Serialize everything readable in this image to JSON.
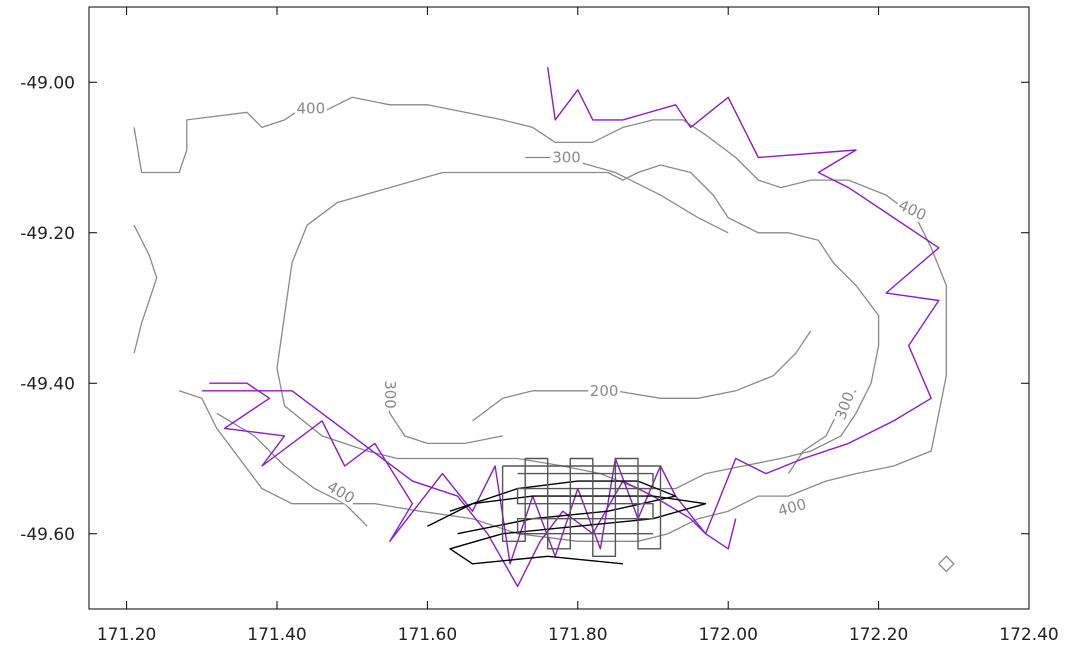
{
  "chart_data": {
    "type": "line",
    "title": "",
    "xlabel": "",
    "ylabel": "",
    "xlim": [
      171.15,
      172.4
    ],
    "ylim": [
      -49.7,
      -48.9
    ],
    "xticks": [
      {
        "value": 171.2,
        "label": "171.20"
      },
      {
        "value": 171.4,
        "label": "171.40"
      },
      {
        "value": 171.6,
        "label": "171.60"
      },
      {
        "value": 171.8,
        "label": "171.80"
      },
      {
        "value": 172.0,
        "label": "172.00"
      },
      {
        "value": 172.2,
        "label": "172.20"
      },
      {
        "value": 172.4,
        "label": "172.40"
      }
    ],
    "yticks": [
      {
        "value": -49.0,
        "label": "-49.00"
      },
      {
        "value": -49.2,
        "label": "-49.20"
      },
      {
        "value": -49.4,
        "label": "-49.40"
      },
      {
        "value": -49.6,
        "label": "-49.60"
      }
    ],
    "grid": false,
    "colors": {
      "contour": "#8a8a8a",
      "track_purple": "#8a1ccf",
      "track_black": "#000000",
      "track_gray": "#555555",
      "axis": "#000000"
    },
    "contours": [
      {
        "id": "contour-400-outer",
        "level": 400,
        "points": [
          [
            171.21,
            -49.06
          ],
          [
            171.22,
            -49.12
          ],
          [
            171.27,
            -49.12
          ],
          [
            171.28,
            -49.09
          ],
          [
            171.28,
            -49.05
          ],
          [
            171.36,
            -49.04
          ],
          [
            171.38,
            -49.06
          ],
          [
            171.41,
            -49.05
          ],
          [
            171.44,
            -49.03
          ],
          [
            171.46,
            -49.04
          ],
          [
            171.5,
            -49.02
          ],
          [
            171.55,
            -49.03
          ],
          [
            171.6,
            -49.03
          ],
          [
            171.65,
            -49.04
          ],
          [
            171.7,
            -49.05
          ],
          [
            171.74,
            -49.06
          ],
          [
            171.77,
            -49.08
          ],
          [
            171.82,
            -49.08
          ],
          [
            171.86,
            -49.06
          ],
          [
            171.9,
            -49.05
          ],
          [
            171.94,
            -49.05
          ],
          [
            171.97,
            -49.07
          ],
          [
            172.01,
            -49.1
          ],
          [
            172.04,
            -49.13
          ],
          [
            172.07,
            -49.14
          ],
          [
            172.11,
            -49.13
          ],
          [
            172.16,
            -49.13
          ],
          [
            172.21,
            -49.15
          ],
          [
            172.25,
            -49.18
          ],
          [
            172.27,
            -49.22
          ],
          [
            172.29,
            -49.27
          ],
          [
            172.29,
            -49.33
          ],
          [
            172.29,
            -49.39
          ],
          [
            172.28,
            -49.44
          ],
          [
            172.27,
            -49.49
          ],
          [
            172.22,
            -49.51
          ],
          [
            172.17,
            -49.52
          ],
          [
            172.13,
            -49.53
          ],
          [
            172.08,
            -49.55
          ],
          [
            172.04,
            -49.55
          ],
          [
            172.0,
            -49.57
          ],
          [
            171.96,
            -49.58
          ],
          [
            171.92,
            -49.6
          ],
          [
            171.88,
            -49.61
          ],
          [
            171.8,
            -49.61
          ],
          [
            171.72,
            -49.6
          ],
          [
            171.66,
            -49.58
          ],
          [
            171.59,
            -49.57
          ],
          [
            171.53,
            -49.56
          ],
          [
            171.47,
            -49.56
          ],
          [
            171.42,
            -49.56
          ],
          [
            171.38,
            -49.54
          ],
          [
            171.35,
            -49.5
          ],
          [
            171.32,
            -49.46
          ],
          [
            171.3,
            -49.42
          ],
          [
            171.27,
            -49.41
          ]
        ]
      },
      {
        "id": "contour-300-main",
        "level": 300,
        "points": [
          [
            171.55,
            -49.14
          ],
          [
            171.62,
            -49.12
          ],
          [
            171.7,
            -49.12
          ],
          [
            171.76,
            -49.12
          ],
          [
            171.8,
            -49.12
          ],
          [
            171.84,
            -49.12
          ],
          [
            171.86,
            -49.13
          ],
          [
            171.88,
            -49.12
          ],
          [
            171.91,
            -49.11
          ],
          [
            171.95,
            -49.12
          ],
          [
            171.98,
            -49.15
          ],
          [
            172.0,
            -49.18
          ],
          [
            172.04,
            -49.2
          ],
          [
            172.08,
            -49.2
          ],
          [
            172.12,
            -49.21
          ],
          [
            172.14,
            -49.24
          ],
          [
            172.17,
            -49.27
          ],
          [
            172.2,
            -49.31
          ],
          [
            172.2,
            -49.35
          ],
          [
            172.19,
            -49.4
          ],
          [
            172.17,
            -49.44
          ],
          [
            172.15,
            -49.47
          ],
          [
            172.11,
            -49.49
          ],
          [
            172.07,
            -49.5
          ],
          [
            172.02,
            -49.51
          ],
          [
            171.97,
            -49.52
          ],
          [
            171.93,
            -49.54
          ],
          [
            171.88,
            -49.54
          ],
          [
            171.83,
            -49.52
          ],
          [
            171.78,
            -49.51
          ],
          [
            171.72,
            -49.5
          ],
          [
            171.66,
            -49.5
          ],
          [
            171.61,
            -49.5
          ],
          [
            171.56,
            -49.5
          ],
          [
            171.52,
            -49.49
          ],
          [
            171.46,
            -49.47
          ],
          [
            171.41,
            -49.43
          ],
          [
            171.4,
            -49.38
          ],
          [
            171.41,
            -49.31
          ],
          [
            171.42,
            -49.24
          ],
          [
            171.44,
            -49.19
          ],
          [
            171.48,
            -49.16
          ],
          [
            171.55,
            -49.14
          ]
        ]
      },
      {
        "id": "contour-300-inner-west",
        "level": 300,
        "points": [
          [
            171.54,
            -49.4
          ],
          [
            171.55,
            -49.44
          ],
          [
            171.57,
            -49.47
          ],
          [
            171.6,
            -49.48
          ],
          [
            171.65,
            -49.48
          ],
          [
            171.7,
            -49.47
          ]
        ]
      },
      {
        "id": "contour-300-east-shelf",
        "level": 300,
        "points": [
          [
            172.08,
            -49.52
          ],
          [
            172.1,
            -49.49
          ],
          [
            172.13,
            -49.47
          ],
          [
            172.15,
            -49.43
          ],
          [
            172.17,
            -49.41
          ]
        ]
      },
      {
        "id": "contour-300-north-arm",
        "level": 300,
        "points": [
          [
            171.73,
            -49.1
          ],
          [
            171.78,
            -49.1
          ],
          [
            171.85,
            -49.12
          ],
          [
            171.91,
            -49.15
          ],
          [
            171.96,
            -49.18
          ],
          [
            172.0,
            -49.2
          ]
        ]
      },
      {
        "id": "contour-200-inner",
        "level": 200,
        "points": [
          [
            171.66,
            -49.45
          ],
          [
            171.7,
            -49.42
          ],
          [
            171.74,
            -49.41
          ],
          [
            171.8,
            -49.41
          ],
          [
            171.85,
            -49.41
          ],
          [
            171.91,
            -49.42
          ],
          [
            171.96,
            -49.42
          ],
          [
            172.01,
            -49.41
          ],
          [
            172.06,
            -49.39
          ],
          [
            172.09,
            -49.36
          ],
          [
            172.11,
            -49.33
          ]
        ]
      },
      {
        "id": "contour-shallow-west",
        "level": 400,
        "points": [
          [
            171.21,
            -49.19
          ],
          [
            171.23,
            -49.23
          ],
          [
            171.24,
            -49.26
          ],
          [
            171.23,
            -49.29
          ],
          [
            171.22,
            -49.32
          ],
          [
            171.21,
            -49.36
          ]
        ]
      },
      {
        "id": "contour-400-southwest",
        "level": 400,
        "points": [
          [
            171.32,
            -49.44
          ],
          [
            171.37,
            -49.47
          ],
          [
            171.41,
            -49.51
          ],
          [
            171.45,
            -49.54
          ],
          [
            171.49,
            -49.56
          ],
          [
            171.52,
            -49.59
          ]
        ]
      },
      {
        "id": "contour-patch-east",
        "level": 400,
        "points": [
          [
            172.28,
            -49.64
          ],
          [
            172.29,
            -49.65
          ],
          [
            172.3,
            -49.64
          ],
          [
            172.29,
            -49.63
          ],
          [
            172.28,
            -49.64
          ]
        ]
      }
    ],
    "contour_labels": [
      {
        "text": "400",
        "x": 171.445,
        "y": -49.035,
        "angle": 0
      },
      {
        "text": "300",
        "x": 171.785,
        "y": -49.1,
        "angle": 0
      },
      {
        "text": "400",
        "x": 172.245,
        "y": -49.17,
        "angle": 25
      },
      {
        "text": "300",
        "x": 171.55,
        "y": -49.415,
        "angle": 90
      },
      {
        "text": "200",
        "x": 171.835,
        "y": -49.41,
        "angle": 0
      },
      {
        "text": "300",
        "x": 172.155,
        "y": -49.43,
        "angle": -70
      },
      {
        "text": "400",
        "x": 171.485,
        "y": -49.545,
        "angle": 30
      },
      {
        "text": "400",
        "x": 172.085,
        "y": -49.565,
        "angle": -15
      }
    ],
    "series": [
      {
        "id": "track-purple-main",
        "color": "#8a1ccf",
        "points": [
          [
            171.31,
            -49.4
          ],
          [
            171.36,
            -49.4
          ],
          [
            171.39,
            -49.42
          ],
          [
            171.33,
            -49.46
          ],
          [
            171.41,
            -49.47
          ],
          [
            171.38,
            -49.51
          ],
          [
            171.46,
            -49.45
          ],
          [
            171.49,
            -49.51
          ],
          [
            171.53,
            -49.48
          ],
          [
            171.58,
            -49.56
          ],
          [
            171.55,
            -49.61
          ],
          [
            171.62,
            -49.52
          ],
          [
            171.66,
            -49.57
          ],
          [
            171.69,
            -49.51
          ],
          [
            171.71,
            -49.64
          ],
          [
            171.74,
            -49.55
          ],
          [
            171.77,
            -49.63
          ],
          [
            171.8,
            -49.54
          ],
          [
            171.83,
            -49.62
          ],
          [
            171.85,
            -49.5
          ],
          [
            171.88,
            -49.58
          ],
          [
            171.91,
            -49.51
          ],
          [
            171.93,
            -49.55
          ],
          [
            171.97,
            -49.6
          ],
          [
            172.01,
            -49.5
          ],
          [
            172.05,
            -49.52
          ],
          [
            172.1,
            -49.5
          ],
          [
            172.16,
            -49.48
          ],
          [
            172.22,
            -49.45
          ],
          [
            172.27,
            -49.42
          ],
          [
            172.24,
            -49.35
          ],
          [
            172.28,
            -49.29
          ],
          [
            172.21,
            -49.28
          ],
          [
            172.28,
            -49.22
          ],
          [
            172.16,
            -49.14
          ],
          [
            172.12,
            -49.12
          ],
          [
            172.17,
            -49.09
          ],
          [
            172.04,
            -49.1
          ],
          [
            172.0,
            -49.02
          ],
          [
            171.95,
            -49.06
          ],
          [
            171.93,
            -49.03
          ],
          [
            171.86,
            -49.05
          ],
          [
            171.82,
            -49.05
          ],
          [
            171.8,
            -49.01
          ],
          [
            171.77,
            -49.05
          ],
          [
            171.76,
            -48.98
          ]
        ]
      },
      {
        "id": "track-purple-south",
        "color": "#8a1ccf",
        "points": [
          [
            171.3,
            -49.41
          ],
          [
            171.42,
            -49.41
          ],
          [
            171.5,
            -49.47
          ],
          [
            171.58,
            -49.53
          ],
          [
            171.64,
            -49.55
          ],
          [
            171.68,
            -49.6
          ],
          [
            171.72,
            -49.67
          ],
          [
            171.75,
            -49.61
          ],
          [
            171.78,
            -49.57
          ],
          [
            171.82,
            -49.6
          ],
          [
            171.86,
            -49.53
          ],
          [
            171.9,
            -49.55
          ],
          [
            171.95,
            -49.58
          ],
          [
            171.97,
            -49.6
          ],
          [
            172.0,
            -49.62
          ],
          [
            172.01,
            -49.58
          ]
        ]
      },
      {
        "id": "track-black-1",
        "color": "#000000",
        "points": [
          [
            171.6,
            -49.59
          ],
          [
            171.66,
            -49.56
          ],
          [
            171.74,
            -49.55
          ],
          [
            171.82,
            -49.55
          ],
          [
            171.9,
            -49.55
          ],
          [
            171.97,
            -49.56
          ],
          [
            171.9,
            -49.58
          ],
          [
            171.8,
            -49.59
          ],
          [
            171.7,
            -49.6
          ],
          [
            171.63,
            -49.62
          ],
          [
            171.66,
            -49.64
          ],
          [
            171.76,
            -49.63
          ],
          [
            171.86,
            -49.64
          ]
        ]
      },
      {
        "id": "track-black-2",
        "color": "#000000",
        "points": [
          [
            171.63,
            -49.57
          ],
          [
            171.72,
            -49.54
          ],
          [
            171.8,
            -49.53
          ],
          [
            171.88,
            -49.53
          ],
          [
            171.93,
            -49.55
          ],
          [
            171.84,
            -49.57
          ],
          [
            171.74,
            -49.58
          ],
          [
            171.64,
            -49.6
          ]
        ]
      },
      {
        "id": "track-gray-survey",
        "color": "#555555",
        "points": [
          [
            171.7,
            -49.51
          ],
          [
            171.7,
            -49.61
          ],
          [
            171.73,
            -49.61
          ],
          [
            171.73,
            -49.5
          ],
          [
            171.76,
            -49.5
          ],
          [
            171.76,
            -49.62
          ],
          [
            171.79,
            -49.62
          ],
          [
            171.79,
            -49.5
          ],
          [
            171.82,
            -49.5
          ],
          [
            171.82,
            -49.63
          ],
          [
            171.85,
            -49.63
          ],
          [
            171.85,
            -49.5
          ],
          [
            171.88,
            -49.5
          ],
          [
            171.88,
            -49.62
          ],
          [
            171.91,
            -49.62
          ],
          [
            171.91,
            -49.51
          ],
          [
            171.7,
            -49.51
          ]
        ]
      },
      {
        "id": "track-gray-survey-2",
        "color": "#555555",
        "points": [
          [
            171.72,
            -49.52
          ],
          [
            171.9,
            -49.52
          ],
          [
            171.9,
            -49.54
          ],
          [
            171.72,
            -49.54
          ],
          [
            171.72,
            -49.56
          ],
          [
            171.9,
            -49.56
          ],
          [
            171.9,
            -49.58
          ],
          [
            171.72,
            -49.58
          ],
          [
            171.72,
            -49.6
          ],
          [
            171.9,
            -49.6
          ]
        ]
      }
    ]
  }
}
